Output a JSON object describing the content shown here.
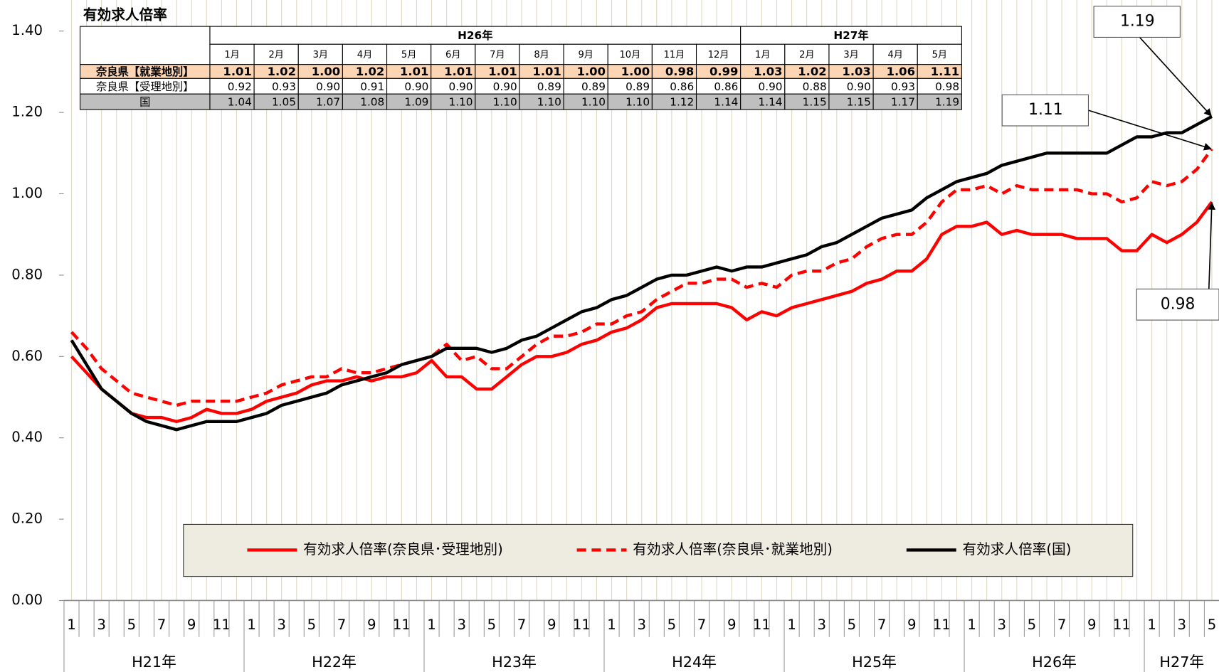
{
  "chart_data": {
    "type": "line",
    "categories": [
      "1",
      null,
      "3",
      null,
      "5",
      null,
      "7",
      null,
      "9",
      null,
      "11",
      null,
      "1",
      null,
      "3",
      null,
      "5",
      null,
      "7",
      null,
      "9",
      null,
      "11",
      null,
      "1",
      null,
      "3",
      null,
      "5",
      null,
      "7",
      null,
      "9",
      null,
      "11",
      null,
      "1",
      null,
      "3",
      null,
      "5",
      null,
      "7",
      null,
      "9",
      null,
      "11",
      null,
      "1",
      null,
      "3",
      null,
      "5",
      null,
      "7",
      null,
      "9",
      null,
      "11",
      null,
      "1",
      null,
      "3",
      null,
      "5",
      null,
      "7",
      null,
      "9",
      null,
      "11",
      null,
      "1",
      null,
      "3",
      null,
      "5"
    ],
    "year_labels": [
      "H21年",
      "H22年",
      "H23年",
      "H24年",
      "H25年",
      "H26年",
      "H27年"
    ],
    "series": [
      {
        "name": "有効求人倍率(奈良県･受理地別)",
        "color": "#ff0000",
        "line_style": "solid",
        "end_label": "0.98",
        "values": [
          0.6,
          0.56,
          0.52,
          0.49,
          0.46,
          0.45,
          0.45,
          0.44,
          0.45,
          0.47,
          0.46,
          0.46,
          0.47,
          0.49,
          0.5,
          0.51,
          0.53,
          0.54,
          0.54,
          0.55,
          0.54,
          0.55,
          0.55,
          0.56,
          0.59,
          0.55,
          0.55,
          0.52,
          0.52,
          0.55,
          0.58,
          0.6,
          0.6,
          0.61,
          0.63,
          0.64,
          0.66,
          0.67,
          0.69,
          0.72,
          0.73,
          0.73,
          0.73,
          0.73,
          0.72,
          0.69,
          0.71,
          0.7,
          0.72,
          0.73,
          0.74,
          0.75,
          0.76,
          0.78,
          0.79,
          0.81,
          0.81,
          0.84,
          0.9,
          0.92,
          0.92,
          0.93,
          0.9,
          0.91,
          0.9,
          0.9,
          0.9,
          0.89,
          0.89,
          0.89,
          0.86,
          0.86,
          0.9,
          0.88,
          0.9,
          0.93,
          0.98
        ]
      },
      {
        "name": "有効求人倍率(奈良県･就業地別)",
        "color": "#ff0000",
        "line_style": "dashed",
        "end_label": "1.11",
        "values": [
          0.66,
          0.62,
          0.57,
          0.54,
          0.51,
          0.5,
          0.49,
          0.48,
          0.49,
          0.49,
          0.49,
          0.49,
          0.5,
          0.51,
          0.53,
          0.54,
          0.55,
          0.55,
          0.57,
          0.56,
          0.56,
          0.57,
          0.58,
          0.59,
          0.6,
          0.63,
          0.59,
          0.6,
          0.57,
          0.57,
          0.6,
          0.63,
          0.65,
          0.65,
          0.66,
          0.68,
          0.68,
          0.7,
          0.71,
          0.74,
          0.76,
          0.78,
          0.78,
          0.79,
          0.79,
          0.77,
          0.78,
          0.77,
          0.8,
          0.81,
          0.81,
          0.83,
          0.84,
          0.87,
          0.89,
          0.9,
          0.9,
          0.93,
          0.98,
          1.01,
          1.01,
          1.02,
          1.0,
          1.02,
          1.01,
          1.01,
          1.01,
          1.01,
          1.0,
          1.0,
          0.98,
          0.99,
          1.03,
          1.02,
          1.03,
          1.06,
          1.11
        ]
      },
      {
        "name": "有効求人倍率(国)",
        "color": "#000000",
        "line_style": "solid",
        "end_label": "1.19",
        "values": [
          0.64,
          0.58,
          0.52,
          0.49,
          0.46,
          0.44,
          0.43,
          0.42,
          0.43,
          0.44,
          0.44,
          0.44,
          0.45,
          0.46,
          0.48,
          0.49,
          0.5,
          0.51,
          0.53,
          0.54,
          0.55,
          0.56,
          0.58,
          0.59,
          0.6,
          0.62,
          0.62,
          0.62,
          0.61,
          0.62,
          0.64,
          0.65,
          0.67,
          0.69,
          0.71,
          0.72,
          0.74,
          0.75,
          0.77,
          0.79,
          0.8,
          0.8,
          0.81,
          0.82,
          0.81,
          0.82,
          0.82,
          0.83,
          0.84,
          0.85,
          0.87,
          0.88,
          0.9,
          0.92,
          0.94,
          0.95,
          0.96,
          0.99,
          1.01,
          1.03,
          1.04,
          1.05,
          1.07,
          1.08,
          1.09,
          1.1,
          1.1,
          1.1,
          1.1,
          1.1,
          1.12,
          1.14,
          1.14,
          1.15,
          1.15,
          1.17,
          1.19
        ]
      }
    ],
    "ylim": [
      0,
      1.4
    ],
    "yticks": [
      {
        "value": 0,
        "label": "0.00"
      },
      {
        "value": 0.2,
        "label": "0.20"
      },
      {
        "value": 0.4,
        "label": "0.40"
      },
      {
        "value": 0.6,
        "label": "0.60"
      },
      {
        "value": 0.8,
        "label": "0.80"
      },
      {
        "value": 1.0,
        "label": "1.00"
      },
      {
        "value": 1.2,
        "label": "1.20"
      },
      {
        "value": 1.4,
        "label": "1.40"
      }
    ],
    "grid_x": true
  },
  "table": {
    "title": "有効求人倍率",
    "groups": [
      {
        "label": "H26年",
        "months": [
          "1月",
          "2月",
          "3月",
          "4月",
          "5月",
          "6月",
          "7月",
          "8月",
          "9月",
          "10月",
          "11月",
          "12月"
        ]
      },
      {
        "label": "H27年",
        "months": [
          "1月",
          "2月",
          "3月",
          "4月",
          "5月"
        ]
      }
    ],
    "rows": [
      {
        "label": "奈良県【就業地別】",
        "values": [
          "1.01",
          "1.02",
          "1.00",
          "1.02",
          "1.01",
          "1.01",
          "1.01",
          "1.01",
          "1.00",
          "1.00",
          "0.98",
          "0.99",
          "1.03",
          "1.02",
          "1.03",
          "1.06",
          "1.11"
        ]
      },
      {
        "label": "奈良県【受理地別】",
        "values": [
          "0.92",
          "0.93",
          "0.90",
          "0.91",
          "0.90",
          "0.90",
          "0.90",
          "0.89",
          "0.89",
          "0.89",
          "0.86",
          "0.86",
          "0.90",
          "0.88",
          "0.90",
          "0.93",
          "0.98"
        ]
      },
      {
        "label": "国",
        "values": [
          "1.04",
          "1.05",
          "1.07",
          "1.08",
          "1.09",
          "1.10",
          "1.10",
          "1.10",
          "1.10",
          "1.10",
          "1.12",
          "1.14",
          "1.14",
          "1.15",
          "1.15",
          "1.17",
          "1.19"
        ]
      }
    ]
  }
}
